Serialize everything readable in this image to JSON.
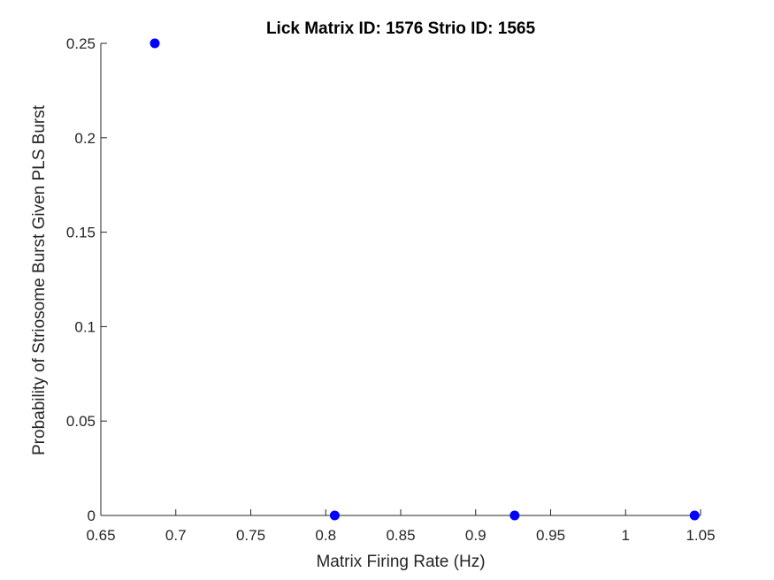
{
  "chart_data": {
    "type": "scatter",
    "title": "Lick Matrix ID: 1576 Strio ID: 1565",
    "xlabel": "Matrix Firing Rate (Hz)",
    "ylabel": "Probability of Striosome Burst Given PLS Burst",
    "xlim": [
      0.65,
      1.05
    ],
    "ylim": [
      0,
      0.25
    ],
    "xticks": [
      0.65,
      0.7,
      0.75,
      0.8,
      0.85,
      0.9,
      0.95,
      1,
      1.05
    ],
    "xtick_labels": [
      "0.65",
      "0.7",
      "0.75",
      "0.8",
      "0.85",
      "0.9",
      "0.95",
      "1",
      "1.05"
    ],
    "yticks": [
      0,
      0.05,
      0.1,
      0.15,
      0.2,
      0.25
    ],
    "ytick_labels": [
      "0",
      "0.05",
      "0.1",
      "0.15",
      "0.2",
      "0.25"
    ],
    "grid": false,
    "points": [
      {
        "x": 0.686,
        "y": 0.25
      },
      {
        "x": 0.806,
        "y": 0
      },
      {
        "x": 0.926,
        "y": 0
      },
      {
        "x": 1.046,
        "y": 0
      }
    ],
    "marker_color": "#0000ff",
    "axis_color": "#262626"
  }
}
